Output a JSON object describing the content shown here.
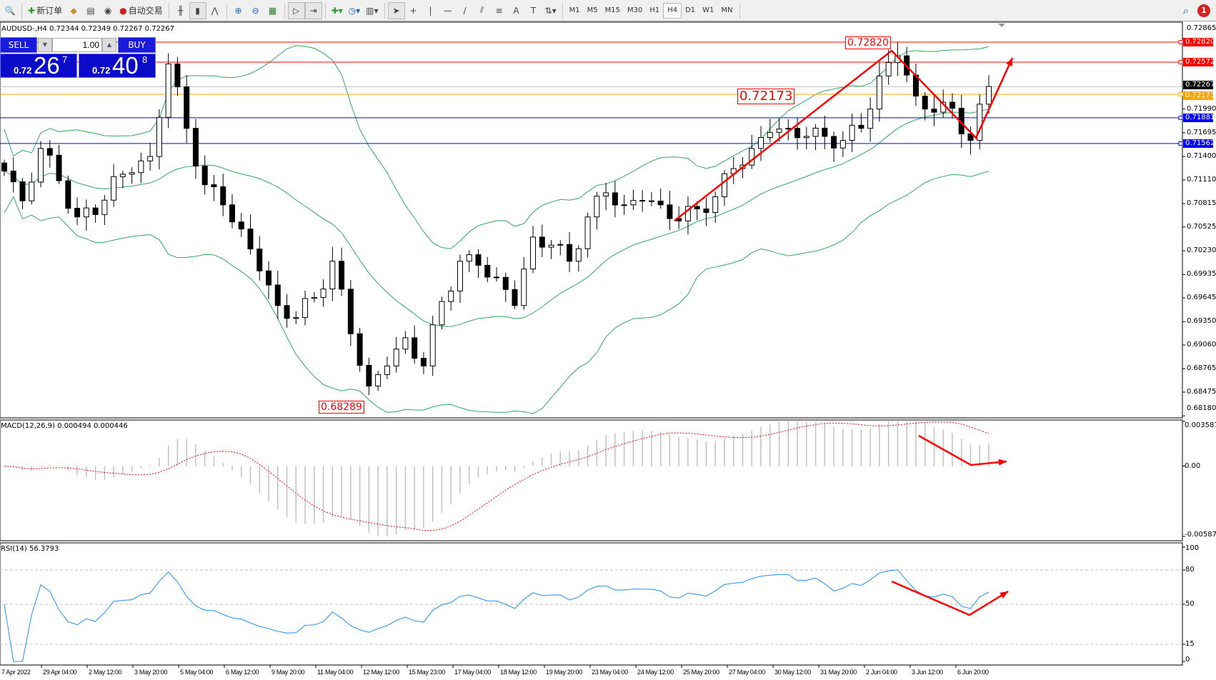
{
  "toolbar": {
    "new_order": "新订单",
    "auto_trading": "自动交易",
    "icons": [
      "search-icon",
      "new-order-icon",
      "gold-icon",
      "history-icon",
      "signal-icon",
      "auto-trading-icon",
      "bar-chart-icon",
      "candlestick-icon",
      "line-chart-icon",
      "zoom-in-icon",
      "zoom-out-icon",
      "tile-windows-icon",
      "autoscroll-icon",
      "chart-shift-icon",
      "indicators-icon",
      "periods-icon",
      "templates-icon",
      "cursor-icon",
      "crosshair-icon",
      "vertical-line-icon",
      "horizontal-line-icon",
      "trendline-icon",
      "equidistant-channel-icon",
      "fibonacci-icon",
      "text-icon",
      "text-label-icon",
      "arrows-icon"
    ],
    "timeframes": [
      "M1",
      "M5",
      "M15",
      "M30",
      "H1",
      "H4",
      "D1",
      "W1",
      "MN"
    ],
    "selected_timeframe": "H4",
    "notification_count": "1"
  },
  "symbol_header": "AUDUSD-,H4  0.72344 0.72349 0.72267 0.72267",
  "one_click": {
    "sell": "SELL",
    "buy": "BUY",
    "lot": "1.00",
    "sell_prefix": "0.72",
    "sell_big": "26",
    "sell_sup": "7",
    "buy_prefix": "0.72",
    "buy_big": "40",
    "buy_sup": "8"
  },
  "price_axis": [
    "0.72865",
    "0.71990",
    "0.71695",
    "0.71400",
    "0.71110",
    "0.70815",
    "0.70525",
    "0.70230",
    "0.69935",
    "0.69645",
    "0.69350",
    "0.69060",
    "0.68765",
    "0.68475",
    "0.68180"
  ],
  "levels": [
    {
      "price": "0.72820",
      "color": "#ff0000"
    },
    {
      "price": "0.72572",
      "color": "#ff0000"
    },
    {
      "price": "0.72267",
      "color": "#000000",
      "line": "#c0c0c0"
    },
    {
      "price": "0.72173",
      "color": "#ffa500"
    },
    {
      "price": "0.71881",
      "color": "#0000ff"
    },
    {
      "price": "0.71562",
      "color": "#0000ff"
    }
  ],
  "annotations": [
    "0.72820",
    "0.72173",
    "0.68289"
  ],
  "macd": {
    "label": "MACD(12,26,9) 0.000494 0.000446",
    "max": "0.003587",
    "zero": "0.00",
    "min": "-0.005873"
  },
  "rsi": {
    "label": "RSI(14) 56.3793",
    "ticks": [
      "100",
      "80",
      "50",
      "15",
      "0"
    ]
  },
  "time_axis": [
    "7 Apr 2022",
    "29 Apr 04:00",
    "2 May 12:00",
    "3 May 20:00",
    "5 May 04:00",
    "6 May 12:00",
    "9 May 20:00",
    "11 May 04:00",
    "12 May 12:00",
    "15 May 23:00",
    "17 May 04:00",
    "18 May 12:00",
    "19 May 20:00",
    "23 May 04:00",
    "24 May 12:00",
    "25 May 20:00",
    "27 May 04:00",
    "30 May 12:00",
    "31 May 20:00",
    "2 Jun 04:00",
    "3 Jun 12:00",
    "6 Jun 20:00"
  ],
  "chart_data": {
    "type": "candlestick",
    "symbol": "AUDUSD-",
    "timeframe": "H4",
    "ylim": [
      0.6818,
      0.72865
    ],
    "indicators": [
      "Bollinger Bands",
      "MACD(12,26,9)",
      "RSI(14)"
    ],
    "colors": {
      "bands": "#2eaa5c",
      "macd_hist": "#c0c0c0",
      "macd_signal": "#ff0000",
      "rsi": "#1e90ff",
      "annotation": "#ff0000"
    },
    "approx_closes": [
      0.7122,
      0.7085,
      0.715,
      0.711,
      0.7065,
      0.7068,
      0.7115,
      0.712,
      0.714,
      0.7255,
      0.7175,
      0.7105,
      0.708,
      0.705,
      0.6998,
      0.6955,
      0.694,
      0.6965,
      0.701,
      0.692,
      0.6855,
      0.688,
      0.6915,
      0.688,
      0.696,
      0.701,
      0.7005,
      0.699,
      0.6955,
      0.704,
      0.703,
      0.701,
      0.7065,
      0.7095,
      0.708,
      0.7085,
      0.708,
      0.706,
      0.7075,
      0.709,
      0.7125,
      0.715,
      0.717,
      0.7175,
      0.7165,
      0.7165,
      0.716,
      0.7175,
      0.724,
      0.7265,
      0.7215,
      0.7195,
      0.72,
      0.716,
      0.7227
    ]
  }
}
